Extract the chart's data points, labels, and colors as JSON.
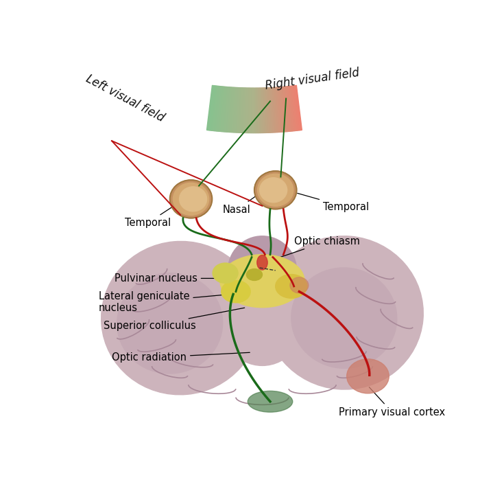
{
  "bg_color": "#ffffff",
  "red_color": "#bb1111",
  "green_color": "#1a6b1a",
  "brain_base": "#cdb4bc",
  "brain_mid": "#c0a0b0",
  "brain_dark": "#aa8898",
  "eye_outer": "#d4a870",
  "eye_inner": "#e8c898",
  "chiasm_yellow": "#e0d060",
  "lgn_yellow": "#d8cc40",
  "labels": {
    "left_visual_field": "Left visual field",
    "right_visual_field": "Right visual field",
    "temporal_left": "Temporal",
    "nasal": "Nasal",
    "temporal_right": "Temporal",
    "optic_chiasm": "Optic chiasm",
    "pulvinar": "Pulvinar nucleus",
    "lgn": "Lateral geniculate\nnucleus",
    "superior_colliculus": "Superior colliculus",
    "optic_radiation": "Optic radiation",
    "primary_visual_cortex": "Primary visual cortex"
  },
  "label_fontsize": 10.5,
  "arc_fontsize": 12
}
